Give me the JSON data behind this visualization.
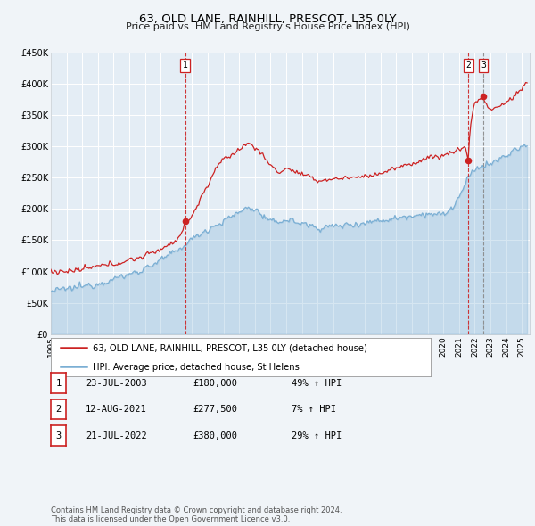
{
  "title": "63, OLD LANE, RAINHILL, PRESCOT, L35 0LY",
  "subtitle": "Price paid vs. HM Land Registry's House Price Index (HPI)",
  "bg_color": "#f0f4f8",
  "plot_bg_color": "#e4edf5",
  "grid_color": "#ffffff",
  "hpi_color": "#7bafd4",
  "price_color": "#cc2222",
  "ylim": [
    0,
    450000
  ],
  "yticks": [
    0,
    50000,
    100000,
    150000,
    200000,
    250000,
    300000,
    350000,
    400000,
    450000
  ],
  "ytick_labels": [
    "£0",
    "£50K",
    "£100K",
    "£150K",
    "£200K",
    "£250K",
    "£300K",
    "£350K",
    "£400K",
    "£450K"
  ],
  "sale_dates_decimal": [
    2003.554,
    2021.608,
    2022.548
  ],
  "sale_prices": [
    180000,
    277500,
    380000
  ],
  "sale_labels": [
    "1",
    "2",
    "3"
  ],
  "vline_colors": [
    "#cc2222",
    "#cc2222",
    "#888888"
  ],
  "vline_styles": [
    "--",
    "--",
    "--"
  ],
  "legend_price_label": "63, OLD LANE, RAINHILL, PRESCOT, L35 0LY (detached house)",
  "legend_hpi_label": "HPI: Average price, detached house, St Helens",
  "table_rows": [
    [
      "1",
      "23-JUL-2003",
      "£180,000",
      "49% ↑ HPI"
    ],
    [
      "2",
      "12-AUG-2021",
      "£277,500",
      "7% ↑ HPI"
    ],
    [
      "3",
      "21-JUL-2022",
      "£380,000",
      "29% ↑ HPI"
    ]
  ],
  "footer": "Contains HM Land Registry data © Crown copyright and database right 2024.\nThis data is licensed under the Open Government Licence v3.0.",
  "xstart": 1995.0,
  "xend": 2025.5
}
